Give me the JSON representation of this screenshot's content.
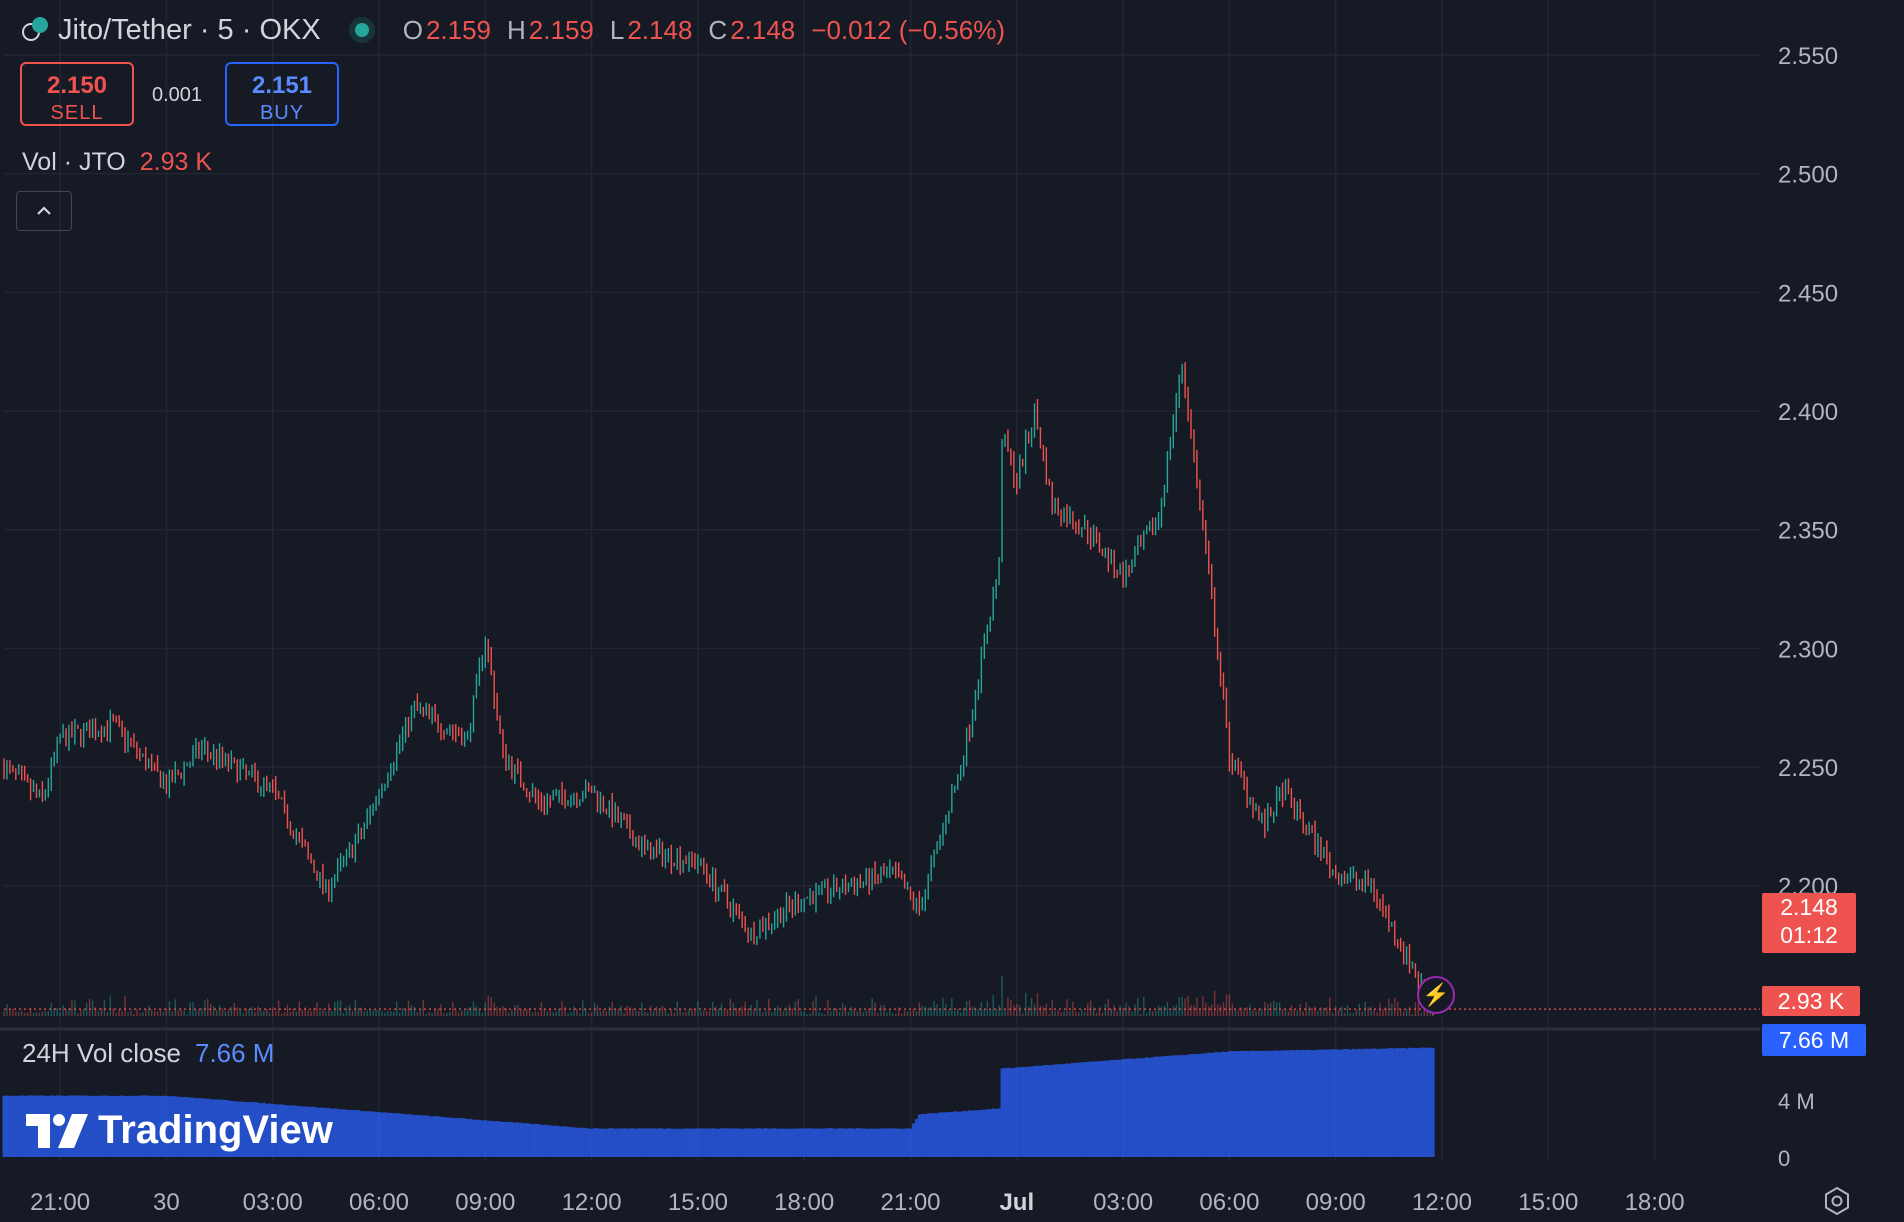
{
  "header": {
    "symbol": "Jito/Tether · 5 · OKX",
    "open_label": "O",
    "open": "2.159",
    "high_label": "H",
    "high": "2.159",
    "low_label": "L",
    "low": "2.148",
    "close_label": "C",
    "close": "2.148",
    "change": "−0.012 (−0.56%)"
  },
  "trade": {
    "sell_price": "2.150",
    "sell_label": "SELL",
    "spread": "0.001",
    "buy_price": "2.151",
    "buy_label": "BUY"
  },
  "volume_indicator": {
    "label": "Vol · JTO",
    "value": "2.93 K"
  },
  "sub_indicator": {
    "label": "24H Vol close",
    "value": "7.66 M"
  },
  "branding": {
    "logo_text": "TradingView"
  },
  "badges": {
    "last_price": "2.148",
    "countdown": "01:12",
    "volume": "2.93 K",
    "vol24": "7.66 M"
  },
  "colors": {
    "up": "#26a69a",
    "down": "#ef5350",
    "vol24": "#2962ff",
    "background": "#161a25",
    "grid": "#232632"
  },
  "chart_data": {
    "type": "candlestick",
    "interval_minutes": 5,
    "price_axis": {
      "ticks": [
        "2.550",
        "2.500",
        "2.450",
        "2.400",
        "2.350",
        "2.300",
        "2.250",
        "2.200"
      ],
      "range": [
        2.135,
        2.57
      ]
    },
    "sub_axis": {
      "ticks": [
        "4 M",
        "0"
      ]
    },
    "time_axis": {
      "ticks": [
        "21:00",
        "30",
        "03:00",
        "06:00",
        "09:00",
        "12:00",
        "15:00",
        "18:00",
        "21:00",
        "Jul",
        "03:00",
        "06:00",
        "09:00",
        "12:00",
        "15:00",
        "18:00"
      ]
    },
    "last_price": 2.148,
    "price_path": [
      {
        "t": "Jun 29 19:25",
        "p": 2.25
      },
      {
        "t": "Jun 29 20:30",
        "p": 2.236
      },
      {
        "t": "Jun 29 21:00",
        "p": 2.262
      },
      {
        "t": "Jun 29 22:30",
        "p": 2.268
      },
      {
        "t": "Jun 30 00:00",
        "p": 2.242
      },
      {
        "t": "Jun 30 01:00",
        "p": 2.258
      },
      {
        "t": "Jun 30 03:00",
        "p": 2.24
      },
      {
        "t": "Jun 30 04:30",
        "p": 2.198
      },
      {
        "t": "Jun 30 05:30",
        "p": 2.222
      },
      {
        "t": "Jun 30 07:00",
        "p": 2.275
      },
      {
        "t": "Jun 30 07:30",
        "p": 2.27
      },
      {
        "t": "Jun 30 08:30",
        "p": 2.262
      },
      {
        "t": "Jun 30 09:00",
        "p": 2.305
      },
      {
        "t": "Jun 30 09:30",
        "p": 2.255
      },
      {
        "t": "Jun 30 10:30",
        "p": 2.235
      },
      {
        "t": "Jun 30 12:00",
        "p": 2.24
      },
      {
        "t": "Jun 30 13:30",
        "p": 2.215
      },
      {
        "t": "Jun 30 15:00",
        "p": 2.21
      },
      {
        "t": "Jun 30 16:30",
        "p": 2.18
      },
      {
        "t": "Jun 30 18:00",
        "p": 2.195
      },
      {
        "t": "Jun 30 20:30",
        "p": 2.205
      },
      {
        "t": "Jun 30 21:15",
        "p": 2.19
      },
      {
        "t": "Jun 30 22:30",
        "p": 2.255
      },
      {
        "t": "Jun 30 23:30",
        "p": 2.335
      },
      {
        "t": "Jun 30 23:35",
        "p": 2.39
      },
      {
        "t": "Jul 1 00:00",
        "p": 2.37
      },
      {
        "t": "Jul 1 00:30",
        "p": 2.4
      },
      {
        "t": "Jul 1 01:00",
        "p": 2.36
      },
      {
        "t": "Jul 1 02:00",
        "p": 2.35
      },
      {
        "t": "Jul 1 03:00",
        "p": 2.33
      },
      {
        "t": "Jul 1 04:00",
        "p": 2.355
      },
      {
        "t": "Jul 1 04:40",
        "p": 2.42
      },
      {
        "t": "Jul 1 05:30",
        "p": 2.32
      },
      {
        "t": "Jul 1 06:00",
        "p": 2.255
      },
      {
        "t": "Jul 1 07:00",
        "p": 2.225
      },
      {
        "t": "Jul 1 07:30",
        "p": 2.24
      },
      {
        "t": "Jul 1 09:00",
        "p": 2.205
      },
      {
        "t": "Jul 1 10:00",
        "p": 2.2
      },
      {
        "t": "Jul 1 11:45",
        "p": 2.148
      }
    ],
    "vol24_path_millions": [
      {
        "t": "Jun 29 19:25",
        "v": 4.3
      },
      {
        "t": "Jun 30 00:00",
        "v": 4.3
      },
      {
        "t": "Jun 30 12:00",
        "v": 2.0
      },
      {
        "t": "Jun 30 21:00",
        "v": 2.0
      },
      {
        "t": "Jun 30 21:15",
        "v": 3.0
      },
      {
        "t": "Jun 30 23:30",
        "v": 3.4
      },
      {
        "t": "Jun 30 23:35",
        "v": 6.2
      },
      {
        "t": "Jul 1 06:00",
        "v": 7.4
      },
      {
        "t": "Jul 1 11:45",
        "v": 7.66
      }
    ]
  }
}
